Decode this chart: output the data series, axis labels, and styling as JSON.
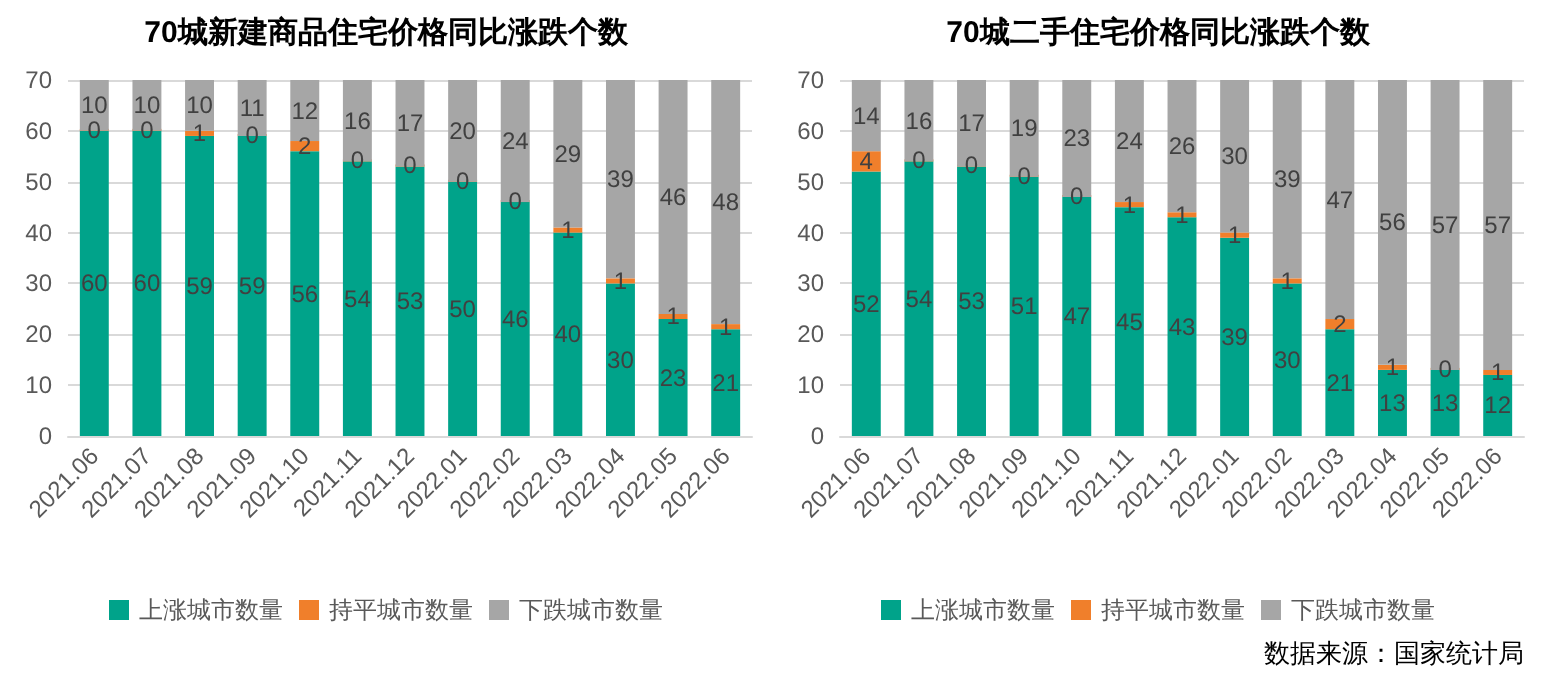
{
  "chart_data": [
    {
      "type": "bar",
      "title": "70城新建商品住宅价格同比涨跌个数",
      "stacked": true,
      "data_labels": true,
      "grid": "y",
      "legend": "bottom",
      "ylim": [
        0,
        70
      ],
      "yticks": [
        0,
        10,
        20,
        30,
        40,
        50,
        60,
        70
      ],
      "categories": [
        "2021.06",
        "2021.07",
        "2021.08",
        "2021.09",
        "2021.10",
        "2021.11",
        "2021.12",
        "2022.01",
        "2022.02",
        "2022.03",
        "2022.04",
        "2022.05",
        "2022.06"
      ],
      "series": [
        {
          "name": "上涨城市数量",
          "color": "#00a38a",
          "values": [
            60,
            60,
            59,
            59,
            56,
            54,
            53,
            50,
            46,
            40,
            30,
            23,
            21
          ]
        },
        {
          "name": "持平城市数量",
          "color": "#f07f2b",
          "values": [
            0,
            0,
            1,
            0,
            2,
            0,
            0,
            0,
            0,
            1,
            1,
            1,
            1
          ]
        },
        {
          "name": "下跌城市数量",
          "color": "#a6a6a6",
          "values": [
            10,
            10,
            10,
            11,
            12,
            16,
            17,
            20,
            24,
            29,
            39,
            46,
            48
          ]
        }
      ]
    },
    {
      "type": "bar",
      "title": "70城二手住宅价格同比涨跌个数",
      "stacked": true,
      "data_labels": true,
      "grid": "y",
      "legend": "bottom",
      "ylim": [
        0,
        70
      ],
      "yticks": [
        0,
        10,
        20,
        30,
        40,
        50,
        60,
        70
      ],
      "categories": [
        "2021.06",
        "2021.07",
        "2021.08",
        "2021.09",
        "2021.10",
        "2021.11",
        "2021.12",
        "2022.01",
        "2022.02",
        "2022.03",
        "2022.04",
        "2022.05",
        "2022.06"
      ],
      "series": [
        {
          "name": "上涨城市数量",
          "color": "#00a38a",
          "values": [
            52,
            54,
            53,
            51,
            47,
            45,
            43,
            39,
            30,
            21,
            13,
            13,
            12
          ]
        },
        {
          "name": "持平城市数量",
          "color": "#f07f2b",
          "values": [
            4,
            0,
            0,
            0,
            0,
            1,
            1,
            1,
            1,
            2,
            1,
            0,
            1
          ]
        },
        {
          "name": "下跌城市数量",
          "color": "#a6a6a6",
          "values": [
            14,
            16,
            17,
            19,
            23,
            24,
            26,
            30,
            39,
            47,
            56,
            57,
            57
          ]
        }
      ],
      "annotations": [
        "数据来源：国家统计局"
      ]
    }
  ]
}
